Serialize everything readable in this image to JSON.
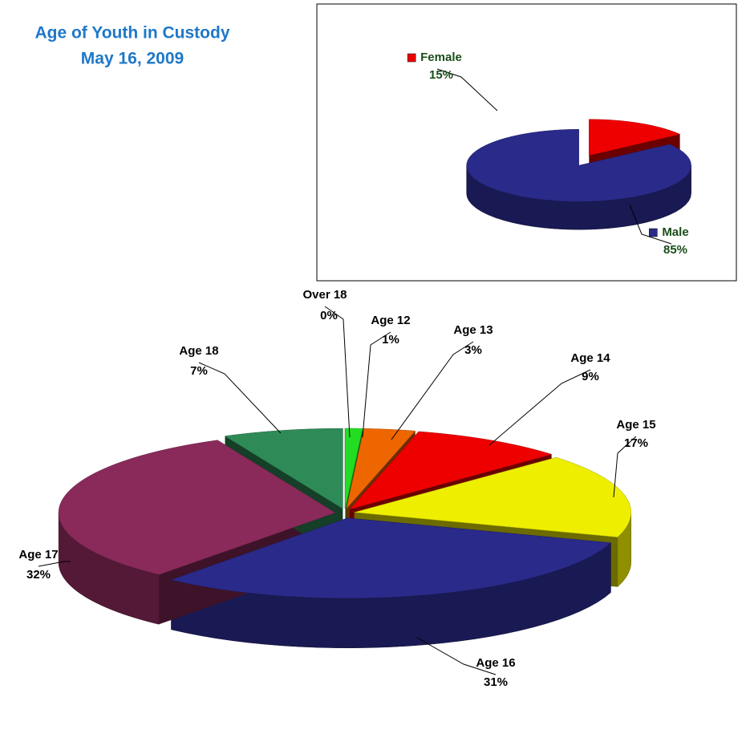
{
  "chart_data": [
    {
      "type": "pie3d",
      "title": "Age of Youth in Custody",
      "subtitle": "May 16, 2009",
      "categories": [
        "Over 18",
        "Age 12",
        "Age 13",
        "Age 14",
        "Age 15",
        "Age 16",
        "Age 17",
        "Age 18"
      ],
      "values": [
        0,
        1,
        3,
        9,
        17,
        31,
        32,
        7
      ],
      "value_labels": [
        "0%",
        "1%",
        "3%",
        "9%",
        "17%",
        "31%",
        "32%",
        "7%"
      ],
      "colors": [
        "#c0c0c0",
        "#22dd22",
        "#ee6600",
        "#ee0000",
        "#eeee00",
        "#2a2a8a",
        "#8a2a5a",
        "#2e8b57"
      ]
    },
    {
      "type": "pie3d",
      "categories": [
        "Female",
        "Male"
      ],
      "values": [
        15,
        85
      ],
      "value_labels": [
        "15%",
        "85%"
      ],
      "colors": [
        "#ee0000",
        "#2a2a8a"
      ]
    }
  ]
}
